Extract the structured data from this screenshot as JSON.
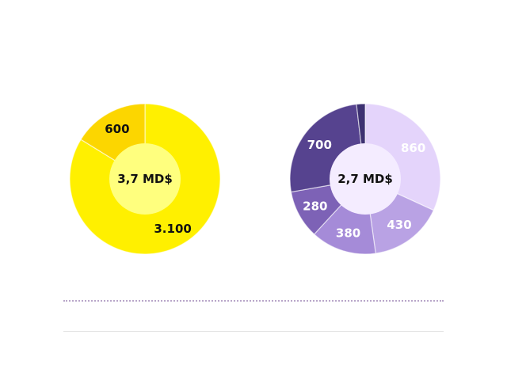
{
  "chart_data": [
    {
      "type": "pie",
      "variant": "donut",
      "center_label": "3,7 MD$",
      "slices": [
        {
          "label": "3.100",
          "value": 3100,
          "color": "#fff000",
          "text_color": "#111111"
        },
        {
          "label": "600",
          "value": 600,
          "color": "#fcd600",
          "text_color": "#111111"
        }
      ],
      "center_color": "#ffff7e"
    },
    {
      "type": "pie",
      "variant": "donut",
      "center_label": "2,7 MD$",
      "slices": [
        {
          "label": "860",
          "value": 860,
          "color": "#e4d4fb",
          "text_color": "#ffffff"
        },
        {
          "label": "430",
          "value": 430,
          "color": "#b9a2e4",
          "text_color": "#ffffff"
        },
        {
          "label": "380",
          "value": 380,
          "color": "#a58bd8",
          "text_color": "#ffffff"
        },
        {
          "label": "280",
          "value": 280,
          "color": "#7d62b6",
          "text_color": "#ffffff"
        },
        {
          "label": "700",
          "value": 700,
          "color": "#56438f",
          "text_color": "#ffffff"
        },
        {
          "label": "",
          "value": 50,
          "color": "#3d3172",
          "text_color": "#ffffff"
        }
      ],
      "center_color": "#f4ecff"
    }
  ]
}
